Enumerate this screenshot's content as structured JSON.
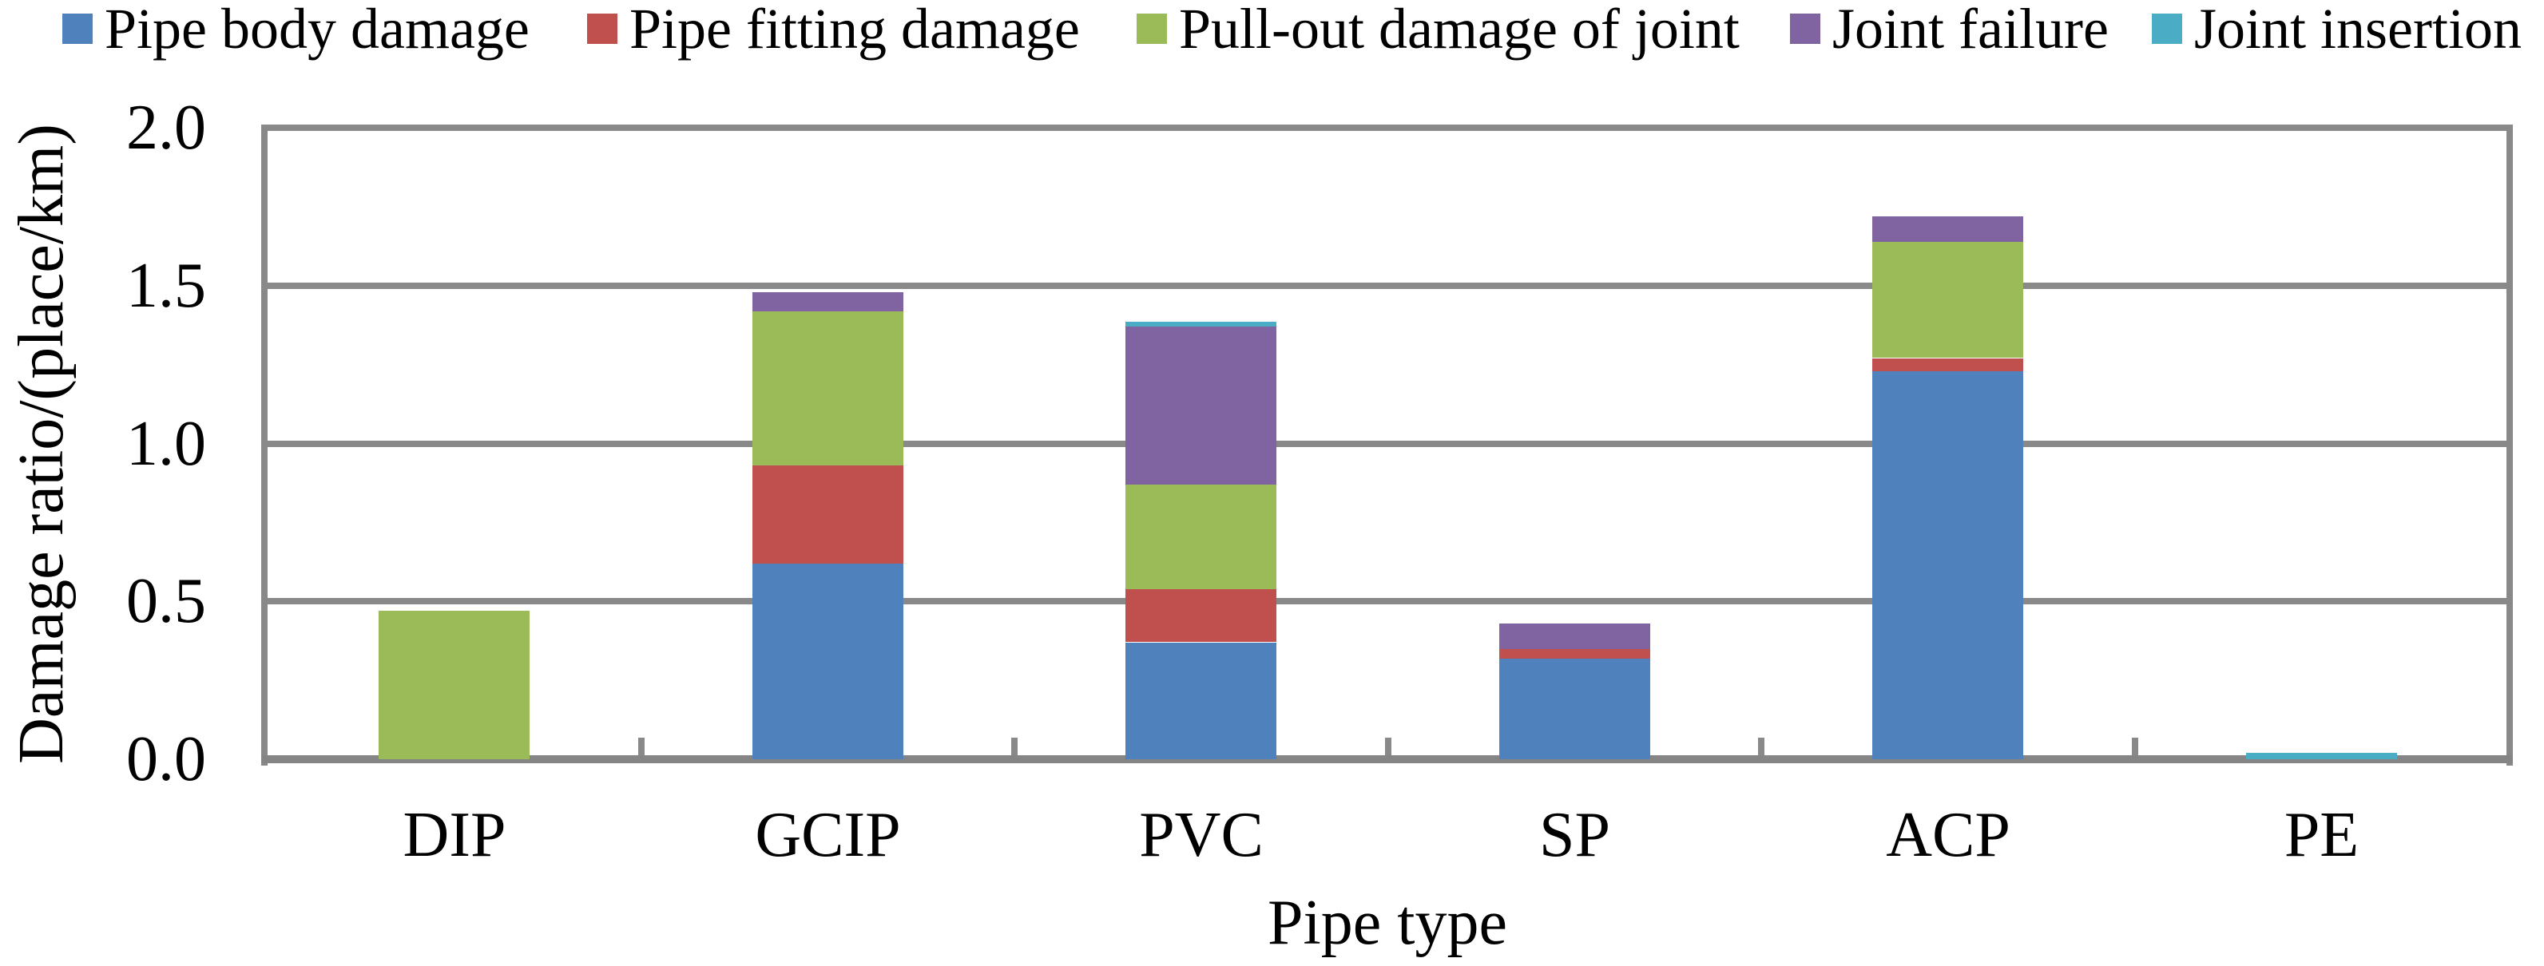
{
  "chart_data": {
    "type": "bar",
    "stacked": true,
    "categories": [
      "DIP",
      "GCIP",
      "PVC",
      "SP",
      "ACP",
      "PE"
    ],
    "series": [
      {
        "name": "Pipe body damage",
        "color": "#4F81BD",
        "values": [
          0,
          0.62,
          0.37,
          0.32,
          1.23,
          0
        ]
      },
      {
        "name": "Pipe fitting damage",
        "color": "#C0504D",
        "values": [
          0,
          0.31,
          0.17,
          0.03,
          0.04,
          0
        ]
      },
      {
        "name": "Pull-out damage of joint",
        "color": "#9BBB59",
        "values": [
          0.47,
          0.49,
          0.33,
          0,
          0.37,
          0
        ]
      },
      {
        "name": "Joint failure",
        "color": "#8064A2",
        "values": [
          0,
          0.06,
          0.5,
          0.08,
          0.08,
          0
        ]
      },
      {
        "name": "Joint insertion",
        "color": "#4BACC6",
        "values": [
          0,
          0,
          0.015,
          0,
          0,
          0.02
        ]
      }
    ],
    "xlabel": "Pipe type",
    "ylabel": "Damage ratio/(place/km)",
    "ylim": [
      0,
      2.0
    ],
    "yticks": [
      "0.0",
      "0.5",
      "1.0",
      "1.5",
      "2.0"
    ],
    "grid": "horizontal-major",
    "gridline_color": "#898989",
    "legend_position": "top",
    "plot_background": "#ffffff"
  }
}
